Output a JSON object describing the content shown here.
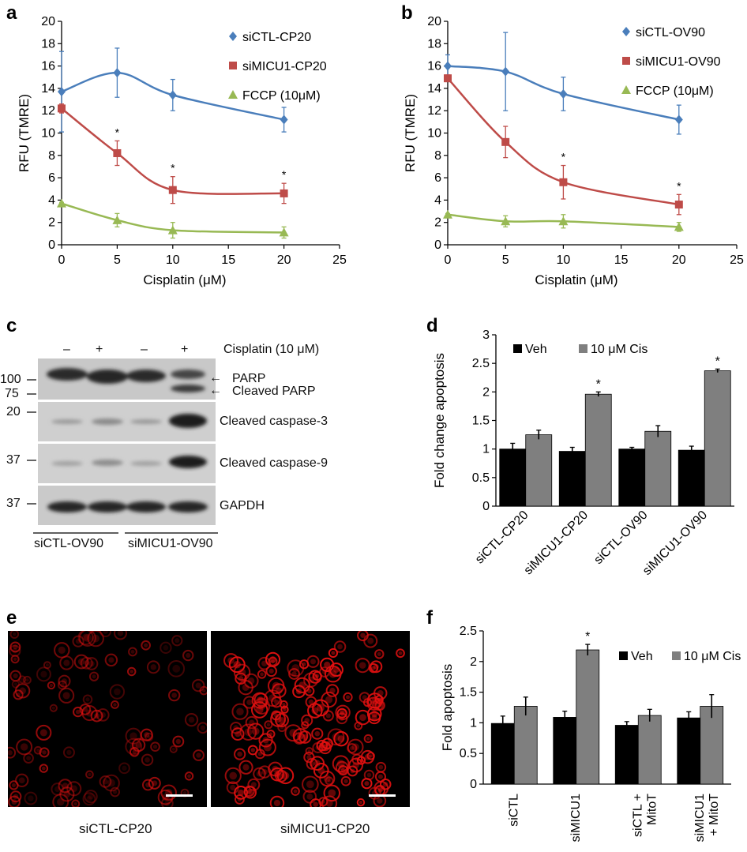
{
  "colors": {
    "blue": "#4a7ebb",
    "red": "#be4b48",
    "green": "#98b954",
    "veh": "#000000",
    "cis": "#7f7f7f",
    "axis": "#000000",
    "micro_bg": "#000000",
    "cell": "#e01010"
  },
  "panel_letters": {
    "a": "a",
    "b": "b",
    "c": "c",
    "d": "d",
    "e": "e",
    "f": "f"
  },
  "chart_data": [
    {
      "id": "a",
      "type": "line",
      "ylabel": "RFU (TMRE)",
      "xlabel": "Cisplatin (μM)",
      "xlim": [
        0,
        25
      ],
      "ylim": [
        0,
        20
      ],
      "xticks": [
        "0",
        "5",
        "10",
        "15",
        "20",
        "25"
      ],
      "yticks": [
        "0",
        "2",
        "4",
        "6",
        "8",
        "10",
        "12",
        "14",
        "16",
        "18",
        "20"
      ],
      "series": [
        {
          "name": "siCTL-CP20",
          "marker": "diamond",
          "color": "#4a7ebb",
          "x": [
            0,
            5,
            10,
            20
          ],
          "values": [
            13.7,
            15.4,
            13.4,
            11.2
          ],
          "err": [
            3.6,
            2.2,
            1.4,
            1.1
          ],
          "stars": []
        },
        {
          "name": "siMICU1-CP20",
          "marker": "square",
          "color": "#be4b48",
          "x": [
            0,
            5,
            10,
            20
          ],
          "values": [
            12.2,
            8.2,
            4.9,
            4.6
          ],
          "err": [
            0.4,
            1.1,
            1.2,
            0.9
          ],
          "stars": [
            5,
            10,
            20
          ]
        },
        {
          "name": "FCCP (10μM)",
          "marker": "triangle",
          "color": "#98b954",
          "x": [
            0,
            5,
            10,
            20
          ],
          "values": [
            3.7,
            2.2,
            1.3,
            1.1
          ],
          "err": [
            0.1,
            0.6,
            0.7,
            0.5
          ],
          "stars": []
        }
      ],
      "star": "*"
    },
    {
      "id": "b",
      "type": "line",
      "ylabel": "RFU (TMRE)",
      "xlabel": "Cisplatin (μM)",
      "xlim": [
        0,
        25
      ],
      "ylim": [
        0,
        20
      ],
      "xticks": [
        "0",
        "5",
        "10",
        "15",
        "20",
        "25"
      ],
      "yticks": [
        "0",
        "2",
        "4",
        "6",
        "8",
        "10",
        "12",
        "14",
        "16",
        "18",
        "20"
      ],
      "series": [
        {
          "name": "siCTL-OV90",
          "marker": "diamond",
          "color": "#4a7ebb",
          "x": [
            0,
            5,
            10,
            20
          ],
          "values": [
            16.0,
            15.5,
            13.5,
            11.2
          ],
          "err": [
            1.0,
            3.5,
            1.5,
            1.3
          ],
          "stars": []
        },
        {
          "name": "siMICU1-OV90",
          "marker": "square",
          "color": "#be4b48",
          "x": [
            0,
            5,
            10,
            20
          ],
          "values": [
            14.9,
            9.2,
            5.6,
            3.6
          ],
          "err": [
            0.3,
            1.4,
            1.5,
            0.9
          ],
          "stars": [
            10,
            20
          ]
        },
        {
          "name": "FCCP (10μM)",
          "marker": "triangle",
          "color": "#98b954",
          "x": [
            0,
            5,
            10,
            20
          ],
          "values": [
            2.7,
            2.1,
            2.1,
            1.6
          ],
          "err": [
            0.1,
            0.5,
            0.6,
            0.4
          ],
          "stars": []
        }
      ],
      "star": "*"
    },
    {
      "id": "d",
      "type": "bar",
      "ylabel": "Fold change apoptosis",
      "categories": [
        "siCTL-CP20",
        "siMICU1-CP20",
        "siCTL-OV90",
        "siMICU1-OV90"
      ],
      "ylim": [
        0,
        3
      ],
      "yticks": [
        "0",
        "0.5",
        "1",
        "1.5",
        "2",
        "2.5",
        "3"
      ],
      "series": [
        {
          "name": "Veh",
          "color": "#000000",
          "values": [
            1.0,
            0.96,
            1.0,
            0.98
          ],
          "err": [
            0.1,
            0.07,
            0.03,
            0.07
          ]
        },
        {
          "name": "10 μM Cis",
          "color": "#7f7f7f",
          "values": [
            1.25,
            1.96,
            1.31,
            2.37
          ],
          "err": [
            0.08,
            0.04,
            0.1,
            0.03
          ]
        }
      ],
      "stars": [
        1,
        3
      ],
      "star": "*"
    },
    {
      "id": "f",
      "type": "bar",
      "ylabel": "Fold apoptosis",
      "categories": [
        [
          "siCTL"
        ],
        [
          "siMICU1"
        ],
        [
          "siCTL +",
          "MitoT"
        ],
        [
          "siMICU1",
          "+ MitoT"
        ]
      ],
      "ylim": [
        0,
        2.5
      ],
      "yticks": [
        "0",
        "0.5",
        "1",
        "1.5",
        "2",
        "2.5"
      ],
      "series": [
        {
          "name": "Veh",
          "color": "#000000",
          "values": [
            0.99,
            1.09,
            0.96,
            1.08
          ],
          "err": [
            0.12,
            0.1,
            0.06,
            0.1
          ]
        },
        {
          "name": "10 μM Cis",
          "color": "#7f7f7f",
          "values": [
            1.27,
            2.19,
            1.12,
            1.27
          ],
          "err": [
            0.15,
            0.09,
            0.1,
            0.19
          ]
        }
      ],
      "stars": [
        1
      ],
      "star": "*"
    }
  ],
  "blot": {
    "treatment_signs": [
      "–",
      "+",
      "–",
      "+"
    ],
    "treatment_label": "Cisplatin (10 μM)",
    "markers": [
      "100",
      "75",
      "20",
      "37",
      "37"
    ],
    "bands": {
      "parp": "PARP",
      "cleaved_parp": "Cleaved PARP",
      "casp3": "Cleaved caspase-3",
      "casp9": "Cleaved caspase-9",
      "gapdh": "GAPDH"
    },
    "groups": [
      "siCTL-OV90",
      "siMICU1-OV90"
    ],
    "arrow": "←"
  },
  "micrographs": {
    "left_caption": "siCTL-CP20",
    "right_caption": "siMICU1-CP20"
  }
}
